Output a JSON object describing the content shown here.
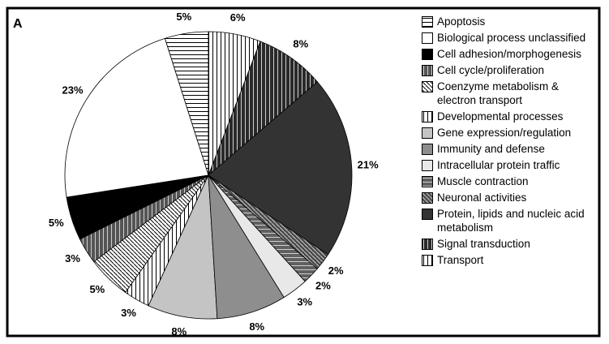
{
  "chart_data": {
    "type": "pie",
    "panel_label": "A",
    "categories": [
      "Apoptosis",
      "Biological process unclassified",
      "Cell adhesion/morphogenesis",
      "Cell cycle/proliferation",
      "Coenzyme metabolism & electron transport",
      "Developmental processes",
      "Gene expression/regulation",
      "Immunity and defense",
      "Intracellular protein traffic",
      "Muscle contraction",
      "Neuronal activities",
      "Protein, lipids and nucleic acid metabolism",
      "Signal transduction",
      "Transport"
    ],
    "values": [
      5,
      23,
      5,
      3,
      5,
      3,
      8,
      8,
      3,
      2,
      2,
      21,
      8,
      6
    ],
    "value_labels": [
      "5%",
      "23%",
      "5%",
      "3%",
      "5%",
      "3%",
      "8%",
      "8%",
      "3%",
      "2%",
      "2%",
      "21%",
      "8%",
      "6%"
    ],
    "colors": [
      "#ffffff",
      "#ffffff",
      "#000000",
      "#555555",
      "#ffffff",
      "#ffffff",
      "#c4c4c4",
      "#8e8e8e",
      "#e8e8e8",
      "#606060",
      "#4a4a4a",
      "#333333",
      "#2a2a2a",
      "#ffffff"
    ],
    "hatches": [
      "horizontal",
      "solid",
      "solid",
      "vertical",
      "diagonal",
      "vertical",
      "solid",
      "solid",
      "solid",
      "horizontal",
      "diagonal",
      "solid",
      "vertical",
      "vertical"
    ],
    "direction": "counterclockwise",
    "start_angle": 0,
    "legend": "right"
  }
}
